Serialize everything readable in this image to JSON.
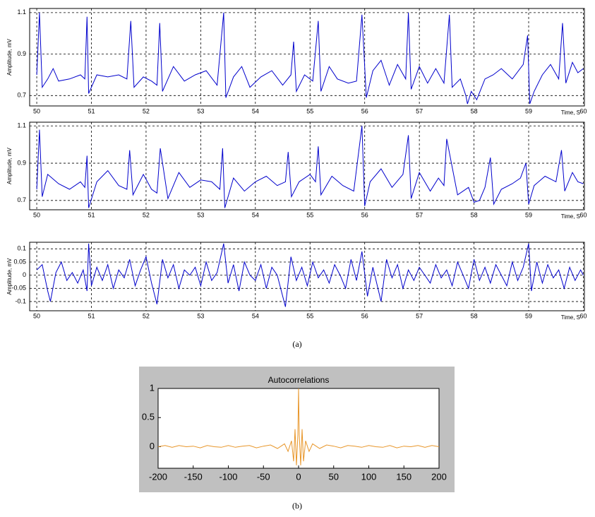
{
  "captions": [
    "(a)",
    "(b)"
  ],
  "chart_data": [
    {
      "type": "line",
      "x_label": "Time, S",
      "y_label": "Amplitude, mV",
      "color": "#0000cc",
      "grid": true,
      "xlim": [
        49.87,
        60.02
      ],
      "ylim": [
        0.65,
        1.12
      ],
      "xticks": [
        50,
        51,
        52,
        53,
        54,
        55,
        56,
        57,
        58,
        59,
        60
      ],
      "yticks": [
        0.7,
        0.9,
        1.1
      ],
      "x": [
        50.0,
        50.05,
        50.1,
        50.2,
        50.3,
        50.4,
        50.6,
        50.8,
        50.88,
        50.92,
        50.95,
        51.1,
        51.3,
        51.5,
        51.65,
        51.72,
        51.78,
        51.95,
        52.1,
        52.2,
        52.25,
        52.3,
        52.5,
        52.7,
        52.9,
        53.1,
        53.3,
        53.42,
        53.46,
        53.6,
        53.75,
        53.9,
        54.1,
        54.3,
        54.5,
        54.65,
        54.7,
        54.75,
        54.9,
        55.05,
        55.15,
        55.2,
        55.35,
        55.5,
        55.7,
        55.85,
        55.95,
        56.03,
        56.15,
        56.3,
        56.45,
        56.6,
        56.75,
        56.8,
        56.85,
        57.0,
        57.15,
        57.3,
        57.45,
        57.55,
        57.6,
        57.75,
        57.85,
        57.88,
        57.95,
        58.05,
        58.2,
        58.35,
        58.5,
        58.7,
        58.9,
        58.98,
        59.02,
        59.1,
        59.25,
        59.4,
        59.55,
        59.62,
        59.68,
        59.8,
        59.9,
        60.0
      ],
      "values": [
        0.8,
        1.1,
        0.74,
        0.78,
        0.83,
        0.77,
        0.78,
        0.8,
        0.78,
        1.08,
        0.71,
        0.8,
        0.79,
        0.8,
        0.78,
        1.06,
        0.74,
        0.79,
        0.77,
        0.75,
        1.05,
        0.72,
        0.84,
        0.77,
        0.8,
        0.82,
        0.75,
        1.1,
        0.69,
        0.79,
        0.84,
        0.74,
        0.79,
        0.82,
        0.75,
        0.8,
        0.96,
        0.72,
        0.8,
        0.77,
        1.06,
        0.72,
        0.84,
        0.78,
        0.76,
        0.77,
        1.09,
        0.69,
        0.82,
        0.87,
        0.75,
        0.85,
        0.78,
        1.1,
        0.73,
        0.84,
        0.76,
        0.83,
        0.76,
        1.09,
        0.74,
        0.78,
        0.7,
        0.66,
        0.72,
        0.68,
        0.78,
        0.8,
        0.83,
        0.78,
        0.85,
        0.99,
        0.66,
        0.72,
        0.8,
        0.85,
        0.78,
        1.05,
        0.76,
        0.86,
        0.81,
        0.83
      ]
    },
    {
      "type": "line",
      "x_label": "Time, S",
      "y_label": "Amplitude, mV",
      "color": "#0000cc",
      "grid": true,
      "xlim": [
        49.87,
        60.02
      ],
      "ylim": [
        0.65,
        1.12
      ],
      "xticks": [
        50,
        51,
        52,
        53,
        54,
        55,
        56,
        57,
        58,
        59,
        60
      ],
      "yticks": [
        0.7,
        0.9,
        1.1
      ],
      "x": [
        50.0,
        50.05,
        50.1,
        50.2,
        50.4,
        50.6,
        50.8,
        50.88,
        50.92,
        50.95,
        51.1,
        51.3,
        51.5,
        51.65,
        51.7,
        51.76,
        51.95,
        52.1,
        52.2,
        52.26,
        52.4,
        52.6,
        52.8,
        53.0,
        53.2,
        53.35,
        53.4,
        53.44,
        53.6,
        53.8,
        54.0,
        54.2,
        54.4,
        54.55,
        54.6,
        54.66,
        54.8,
        55.0,
        55.1,
        55.15,
        55.2,
        55.4,
        55.6,
        55.8,
        55.95,
        56.0,
        56.1,
        56.3,
        56.5,
        56.7,
        56.8,
        56.85,
        57.0,
        57.2,
        57.35,
        57.45,
        57.5,
        57.7,
        57.9,
        58.0,
        58.1,
        58.2,
        58.3,
        58.36,
        58.5,
        58.7,
        58.85,
        58.95,
        59.0,
        59.1,
        59.3,
        59.5,
        59.6,
        59.66,
        59.8,
        59.9,
        60.0
      ],
      "values": [
        0.76,
        1.08,
        0.72,
        0.84,
        0.79,
        0.76,
        0.8,
        0.77,
        0.94,
        0.66,
        0.8,
        0.86,
        0.78,
        0.76,
        0.97,
        0.73,
        0.84,
        0.76,
        0.74,
        0.98,
        0.71,
        0.85,
        0.77,
        0.81,
        0.8,
        0.76,
        0.98,
        0.66,
        0.82,
        0.75,
        0.8,
        0.83,
        0.78,
        0.8,
        0.96,
        0.72,
        0.8,
        0.84,
        0.8,
        0.99,
        0.73,
        0.83,
        0.78,
        0.75,
        1.1,
        0.67,
        0.8,
        0.87,
        0.77,
        0.84,
        1.05,
        0.71,
        0.85,
        0.75,
        0.82,
        0.78,
        1.03,
        0.73,
        0.77,
        0.69,
        0.7,
        0.77,
        0.93,
        0.68,
        0.76,
        0.79,
        0.82,
        0.9,
        0.68,
        0.78,
        0.83,
        0.8,
        0.97,
        0.75,
        0.85,
        0.8,
        0.79
      ]
    },
    {
      "type": "line",
      "x_label": "Time, S",
      "y_label": "Amplitude, mV",
      "color": "#0000cc",
      "grid": true,
      "xlim": [
        49.87,
        60.02
      ],
      "ylim": [
        -0.135,
        0.125
      ],
      "xticks": [
        50,
        51,
        52,
        53,
        54,
        55,
        56,
        57,
        58,
        59,
        60
      ],
      "yticks": [
        0.1,
        0.05,
        0,
        -0.05,
        -0.1
      ],
      "x": [
        50.0,
        50.1,
        50.2,
        50.25,
        50.35,
        50.45,
        50.55,
        50.65,
        50.75,
        50.85,
        50.92,
        50.95,
        51.0,
        51.1,
        51.2,
        51.3,
        51.4,
        51.5,
        51.6,
        51.7,
        51.8,
        51.9,
        52.0,
        52.1,
        52.2,
        52.3,
        52.4,
        52.5,
        52.6,
        52.7,
        52.8,
        52.9,
        53.0,
        53.1,
        53.2,
        53.3,
        53.42,
        53.5,
        53.6,
        53.7,
        53.8,
        53.9,
        54.0,
        54.1,
        54.2,
        54.3,
        54.4,
        54.55,
        54.65,
        54.75,
        54.85,
        54.95,
        55.05,
        55.15,
        55.25,
        55.35,
        55.45,
        55.55,
        55.65,
        55.75,
        55.85,
        55.95,
        56.05,
        56.15,
        56.3,
        56.4,
        56.5,
        56.6,
        56.7,
        56.8,
        56.9,
        57.0,
        57.1,
        57.2,
        57.3,
        57.4,
        57.5,
        57.6,
        57.7,
        57.8,
        57.9,
        58.0,
        58.1,
        58.2,
        58.3,
        58.4,
        58.5,
        58.6,
        58.7,
        58.8,
        58.9,
        59.0,
        59.05,
        59.15,
        59.25,
        59.35,
        59.45,
        59.55,
        59.65,
        59.75,
        59.85,
        59.95,
        60.0
      ],
      "values": [
        0.02,
        0.04,
        -0.06,
        -0.1,
        0.01,
        0.05,
        -0.02,
        0.01,
        -0.03,
        0.02,
        -0.06,
        0.12,
        -0.04,
        0.03,
        -0.02,
        0.04,
        -0.05,
        0.02,
        -0.01,
        0.06,
        -0.04,
        0.02,
        0.07,
        -0.03,
        -0.11,
        0.06,
        -0.01,
        0.04,
        -0.05,
        0.02,
        0.0,
        0.03,
        -0.04,
        0.05,
        -0.02,
        0.01,
        0.12,
        -0.03,
        0.04,
        -0.06,
        0.05,
        0.0,
        -0.02,
        0.04,
        -0.05,
        0.03,
        0.0,
        -0.12,
        0.07,
        -0.02,
        0.03,
        -0.04,
        0.05,
        -0.01,
        0.02,
        -0.03,
        0.04,
        0.0,
        -0.05,
        0.06,
        -0.02,
        0.09,
        -0.08,
        0.03,
        -0.1,
        0.06,
        -0.01,
        0.04,
        -0.05,
        0.02,
        -0.02,
        0.03,
        0.0,
        -0.03,
        0.04,
        -0.01,
        0.02,
        -0.04,
        0.05,
        0.0,
        -0.05,
        0.06,
        -0.02,
        0.03,
        -0.03,
        0.04,
        0.0,
        -0.04,
        0.05,
        -0.02,
        0.03,
        0.12,
        -0.06,
        0.05,
        -0.03,
        0.04,
        -0.01,
        0.02,
        -0.05,
        0.03,
        -0.02,
        0.02,
        0.0
      ]
    },
    {
      "type": "line",
      "title": "Autocorrelations",
      "color": "#e8962a",
      "grid": false,
      "xlim": [
        -200,
        200
      ],
      "ylim": [
        -0.37,
        1
      ],
      "xticks": [
        -200,
        -150,
        -100,
        -50,
        0,
        50,
        100,
        150,
        200
      ],
      "yticks": [
        0,
        0.5,
        1
      ],
      "x": [
        -200,
        -190,
        -180,
        -170,
        -160,
        -150,
        -140,
        -130,
        -120,
        -110,
        -100,
        -90,
        -80,
        -70,
        -60,
        -50,
        -40,
        -30,
        -20,
        -15,
        -10,
        -7,
        -5,
        -3,
        -1,
        0,
        1,
        3,
        5,
        7,
        10,
        15,
        20,
        30,
        40,
        50,
        60,
        70,
        80,
        90,
        100,
        110,
        120,
        130,
        140,
        150,
        160,
        170,
        180,
        190,
        200
      ],
      "values": [
        0.0,
        0.02,
        -0.01,
        0.02,
        0.0,
        0.01,
        -0.02,
        0.02,
        0.0,
        -0.01,
        0.02,
        -0.01,
        0.01,
        0.02,
        -0.02,
        0.01,
        0.03,
        -0.03,
        0.05,
        -0.08,
        0.1,
        -0.25,
        0.3,
        -0.32,
        0.2,
        1,
        0.2,
        -0.32,
        0.3,
        -0.25,
        0.1,
        -0.08,
        0.05,
        -0.03,
        0.03,
        0.01,
        -0.02,
        0.02,
        0.01,
        -0.01,
        0.02,
        0.0,
        -0.01,
        0.02,
        -0.02,
        0.01,
        0.0,
        0.02,
        -0.01,
        0.02,
        0.0
      ]
    }
  ]
}
